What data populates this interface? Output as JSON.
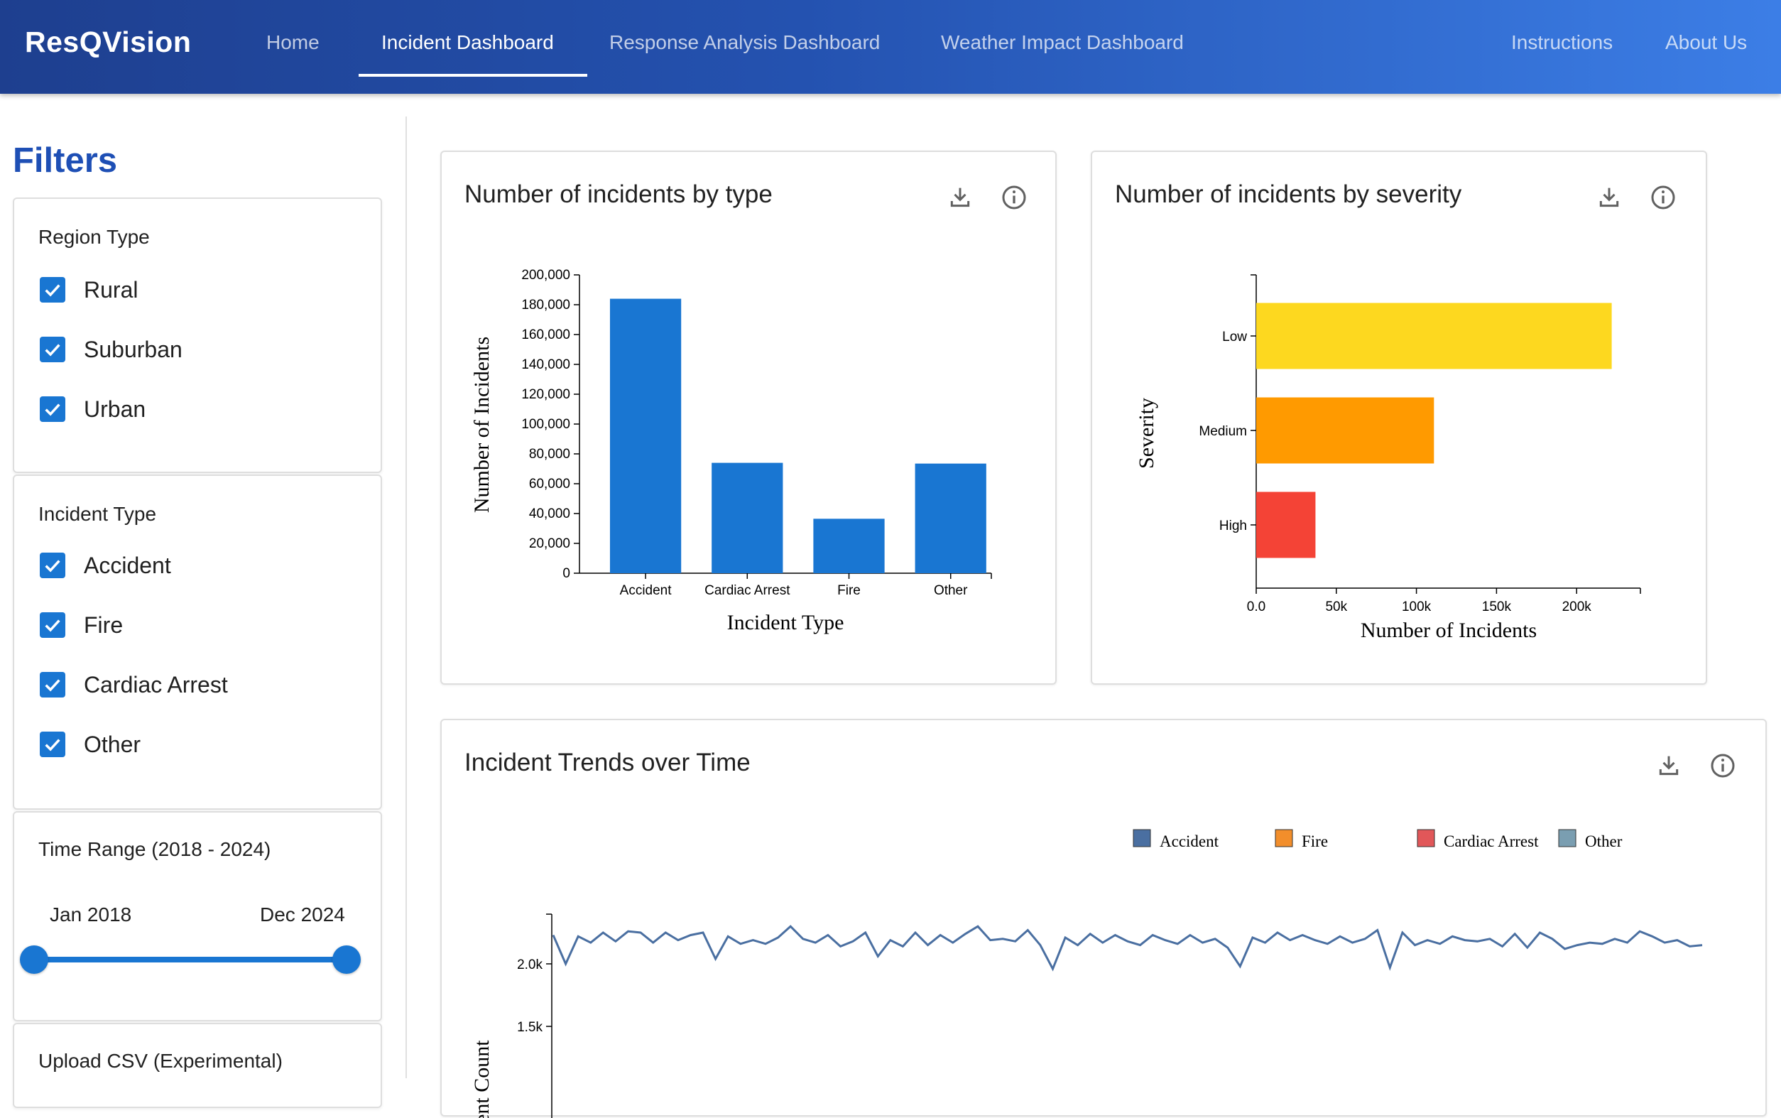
{
  "header": {
    "brand": "ResQVision",
    "nav": [
      "Home",
      "Incident Dashboard",
      "Response Analysis Dashboard",
      "Weather Impact Dashboard"
    ],
    "nav_right": [
      "Instructions",
      "About Us"
    ],
    "active_nav": "Incident Dashboard"
  },
  "sidebar": {
    "title": "Filters",
    "region_type": {
      "label": "Region Type",
      "options": [
        "Rural",
        "Suburban",
        "Urban"
      ],
      "checked": [
        true,
        true,
        true
      ]
    },
    "incident_type": {
      "label": "Incident Type",
      "options": [
        "Accident",
        "Fire",
        "Cardiac Arrest",
        "Other"
      ],
      "checked": [
        true,
        true,
        true,
        true
      ]
    },
    "time_range": {
      "label": "Time Range (2018 - 2024)",
      "start_label": "Jan 2018",
      "end_label": "Dec 2024",
      "range": [
        0,
        1
      ]
    },
    "upload": {
      "label": "Upload CSV (Experimental)"
    }
  },
  "cards": {
    "by_type": {
      "title": "Number of incidents by type",
      "icons": [
        "download-icon",
        "info-icon"
      ]
    },
    "by_severity": {
      "title": "Number of incidents by severity",
      "icons": [
        "download-icon",
        "info-icon"
      ]
    },
    "trends": {
      "title": "Incident Trends over Time",
      "icons": [
        "download-icon",
        "info-icon"
      ]
    }
  },
  "chart_data": [
    {
      "type": "bar",
      "categories": [
        "Accident",
        "Cardiac Arrest",
        "Fire",
        "Other"
      ],
      "values": [
        184000,
        74000,
        36500,
        73500
      ],
      "xlabel": "Incident Type",
      "ylabel": "Number of Incidents",
      "ylim": [
        0,
        200000
      ],
      "yticks": [
        "0",
        "20,000",
        "40,000",
        "60,000",
        "80,000",
        "100,000",
        "120,000",
        "140,000",
        "160,000",
        "180,000",
        "200,000"
      ],
      "color": "#1976d2"
    },
    {
      "type": "bar",
      "orientation": "horizontal",
      "categories": [
        "Low",
        "Medium",
        "High"
      ],
      "values": [
        222000,
        111000,
        37000
      ],
      "colors": [
        "#fdd81f",
        "#ff9a00",
        "#f44336"
      ],
      "xlabel": "Number of Incidents",
      "ylabel": "Severity",
      "xlim": [
        0,
        240000
      ],
      "xticks": [
        "0.0",
        "50k",
        "100k",
        "150k",
        "200k"
      ]
    },
    {
      "type": "line",
      "legend": [
        {
          "name": "Accident",
          "color": "#4a6fa1"
        },
        {
          "name": "Fire",
          "color": "#f28e2b"
        },
        {
          "name": "Cardiac Arrest",
          "color": "#e15759"
        },
        {
          "name": "Other",
          "color": "#7a9eb1"
        }
      ],
      "ylabel": "Incident Count",
      "yticks": [
        "2.0k",
        "1.5k"
      ],
      "series": [
        {
          "name": "Accident",
          "values": [
            2230,
            2000,
            2220,
            2170,
            2250,
            2180,
            2260,
            2250,
            2170,
            2250,
            2190,
            2230,
            2250,
            2040,
            2220,
            2160,
            2190,
            2160,
            2210,
            2300,
            2200,
            2170,
            2230,
            2140,
            2180,
            2250,
            2060,
            2190,
            2140,
            2250,
            2150,
            2230,
            2170,
            2240,
            2300,
            2190,
            2200,
            2180,
            2270,
            2150,
            1960,
            2210,
            2150,
            2240,
            2170,
            2230,
            2180,
            2150,
            2230,
            2190,
            2160,
            2230,
            2170,
            2200,
            2130,
            1980,
            2210,
            2170,
            2250,
            2190,
            2230,
            2190,
            2160,
            2220,
            2170,
            2200,
            2270,
            1970,
            2250,
            2150,
            2190,
            2160,
            2220,
            2190,
            2180,
            2200,
            2140,
            2240,
            2130,
            2250,
            2200,
            2120,
            2150,
            2170,
            2160,
            2200,
            2170,
            2260,
            2220,
            2170,
            2190,
            2140,
            2150
          ]
        }
      ]
    }
  ]
}
